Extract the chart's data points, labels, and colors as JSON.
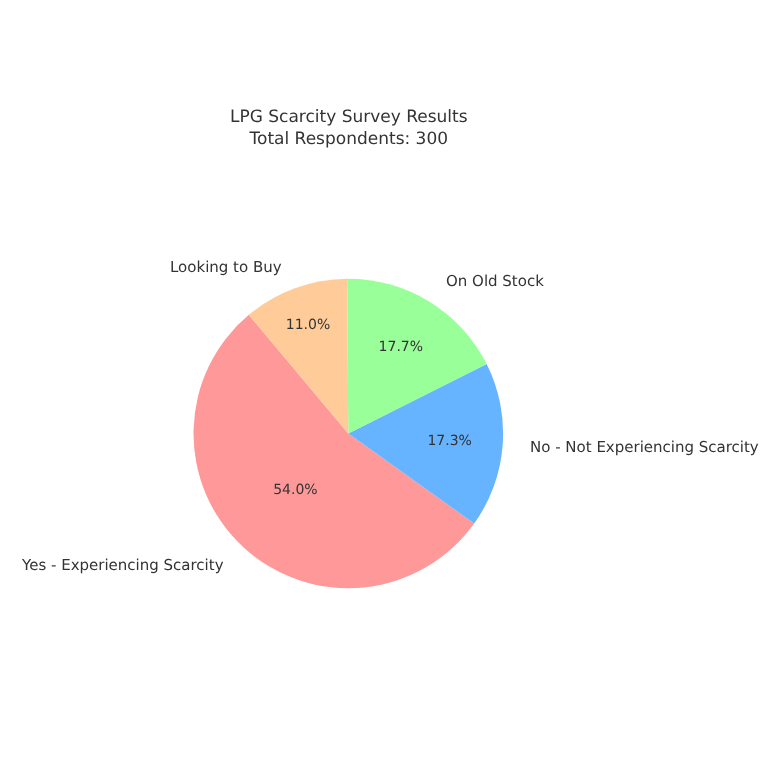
{
  "chart_data": {
    "type": "pie",
    "title": "LPG Scarcity Survey Results",
    "subtitle": "Total Respondents: 300",
    "categories": [
      "Yes - Experiencing Scarcity",
      "No - Not Experiencing Scarcity",
      "On Old Stock",
      "Looking to Buy"
    ],
    "values": [
      54.0,
      17.3,
      17.7,
      11.0
    ],
    "value_labels": [
      "54.0%",
      "17.3%",
      "17.7%",
      "11.0%"
    ],
    "colors": [
      "#ff9999",
      "#66b3ff",
      "#99ff99",
      "#ffcc99"
    ],
    "legend": false
  }
}
